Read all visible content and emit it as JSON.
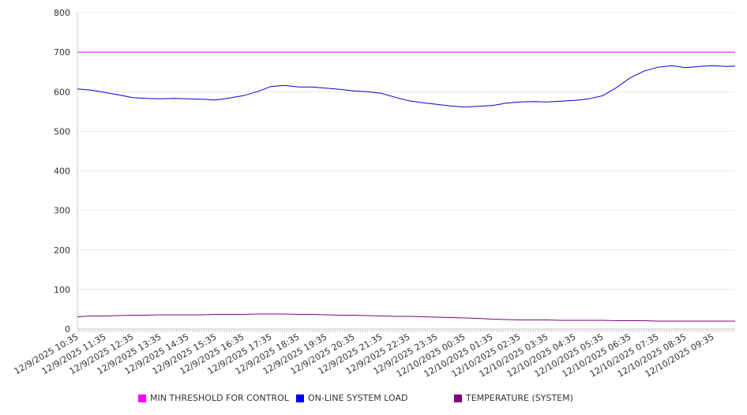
{
  "chart_data": {
    "type": "line",
    "title": "",
    "xlabel": "",
    "ylabel": "",
    "ylim": [
      0,
      800
    ],
    "yticks": [
      0,
      100,
      200,
      300,
      400,
      500,
      600,
      700,
      800
    ],
    "grid": true,
    "legend_position": "bottom",
    "x_tick_labels": [
      "12/9/2025 10:35",
      "12/9/2025 11:35",
      "12/9/2025 12:35",
      "12/9/2025 13:35",
      "12/9/2025 14:35",
      "12/9/2025 15:35",
      "12/9/2025 16:35",
      "12/9/2025 17:35",
      "12/9/2025 18:35",
      "12/9/2025 19:35",
      "12/9/2025 20:35",
      "12/9/2025 21:35",
      "12/9/2025 22:35",
      "12/9/2025 23:35",
      "12/10/2025 00:35",
      "12/10/2025 01:35",
      "12/10/2025 02:35",
      "12/10/2025 03:35",
      "12/10/2025 04:35",
      "12/10/2025 05:35",
      "12/10/2025 06:35",
      "12/10/2025 07:35",
      "12/10/2025 08:35",
      "12/10/2025 09:35"
    ],
    "x_hours": [
      0,
      0.5,
      1,
      1.5,
      2,
      2.5,
      3,
      3.5,
      4,
      4.5,
      5,
      5.5,
      6,
      6.5,
      7,
      7.5,
      8,
      8.5,
      9,
      9.5,
      10,
      10.5,
      11,
      11.5,
      12,
      12.5,
      13,
      13.5,
      14,
      14.5,
      15,
      15.5,
      16,
      16.5,
      17,
      17.5,
      18,
      18.5,
      19,
      19.5,
      20,
      20.5,
      21,
      21.5,
      22,
      22.5,
      23,
      23.5,
      23.8
    ],
    "x_range_hours": [
      0,
      23.8
    ],
    "series": [
      {
        "name": "MIN THRESHOLD FOR CONTROL",
        "color": "#ff00ff",
        "values": [
          700,
          700,
          700,
          700,
          700,
          700,
          700,
          700,
          700,
          700,
          700,
          700,
          700,
          700,
          700,
          700,
          700,
          700,
          700,
          700,
          700,
          700,
          700,
          700,
          700,
          700,
          700,
          700,
          700,
          700,
          700,
          700,
          700,
          700,
          700,
          700,
          700,
          700,
          700,
          700,
          700,
          700,
          700,
          700,
          700,
          700,
          700,
          700,
          700
        ]
      },
      {
        "name": "ON-LINE SYSTEM LOAD",
        "color": "#0000cc",
        "values": [
          607,
          604,
          598,
          592,
          585,
          583,
          582,
          583,
          582,
          581,
          579,
          584,
          590,
          600,
          613,
          616,
          612,
          612,
          609,
          606,
          602,
          600,
          596,
          586,
          577,
          572,
          568,
          564,
          561,
          563,
          565,
          571,
          574,
          575,
          574,
          576,
          578,
          582,
          590,
          610,
          635,
          652,
          662,
          666,
          661,
          664,
          666,
          664,
          665
        ]
      },
      {
        "name": "TEMPERATURE (SYSTEM)",
        "color": "#800080",
        "values": [
          31,
          33,
          33,
          34,
          35,
          35,
          36,
          36,
          36,
          36,
          37,
          37,
          37,
          38,
          38,
          38,
          37,
          37,
          36,
          35,
          35,
          34,
          33,
          32,
          32,
          31,
          30,
          29,
          28,
          27,
          25,
          24,
          23,
          23,
          23,
          22,
          22,
          22,
          22,
          21,
          21,
          21,
          20,
          20,
          20,
          20,
          20,
          20,
          20
        ]
      }
    ]
  }
}
